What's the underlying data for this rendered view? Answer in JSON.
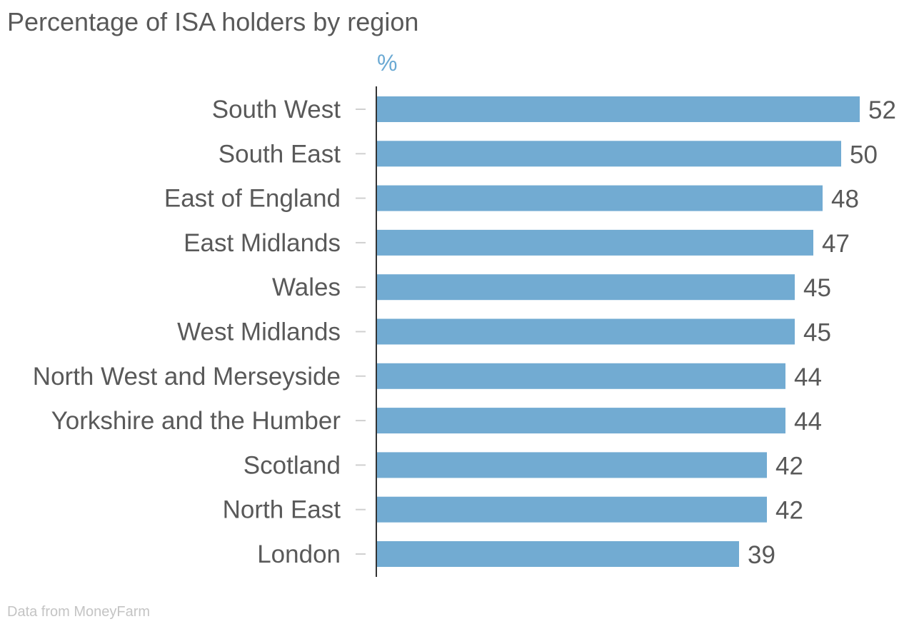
{
  "title": "Percentage of ISA holders by region",
  "unit": "%",
  "source": "Data from MoneyFarm",
  "colors": {
    "bar": "#72abd2",
    "text": "#595959",
    "unit": "#6aa9d3",
    "source": "#c4c4c4",
    "axis": "#333333",
    "tick": "#d0d0d0"
  },
  "chart_data": {
    "type": "bar",
    "orientation": "horizontal",
    "title": "Percentage of ISA holders by region",
    "xlabel": "%",
    "ylabel": "",
    "categories": [
      "South West",
      "South East",
      "East of England",
      "East Midlands",
      "Wales",
      "West Midlands",
      "North West and Merseyside",
      "Yorkshire and the Humber",
      "Scotland",
      "North East",
      "London"
    ],
    "values": [
      52,
      50,
      48,
      47,
      45,
      45,
      44,
      44,
      42,
      42,
      39
    ],
    "xlim": [
      0,
      52
    ],
    "grid": false,
    "legend": "none",
    "data_labels": true
  }
}
